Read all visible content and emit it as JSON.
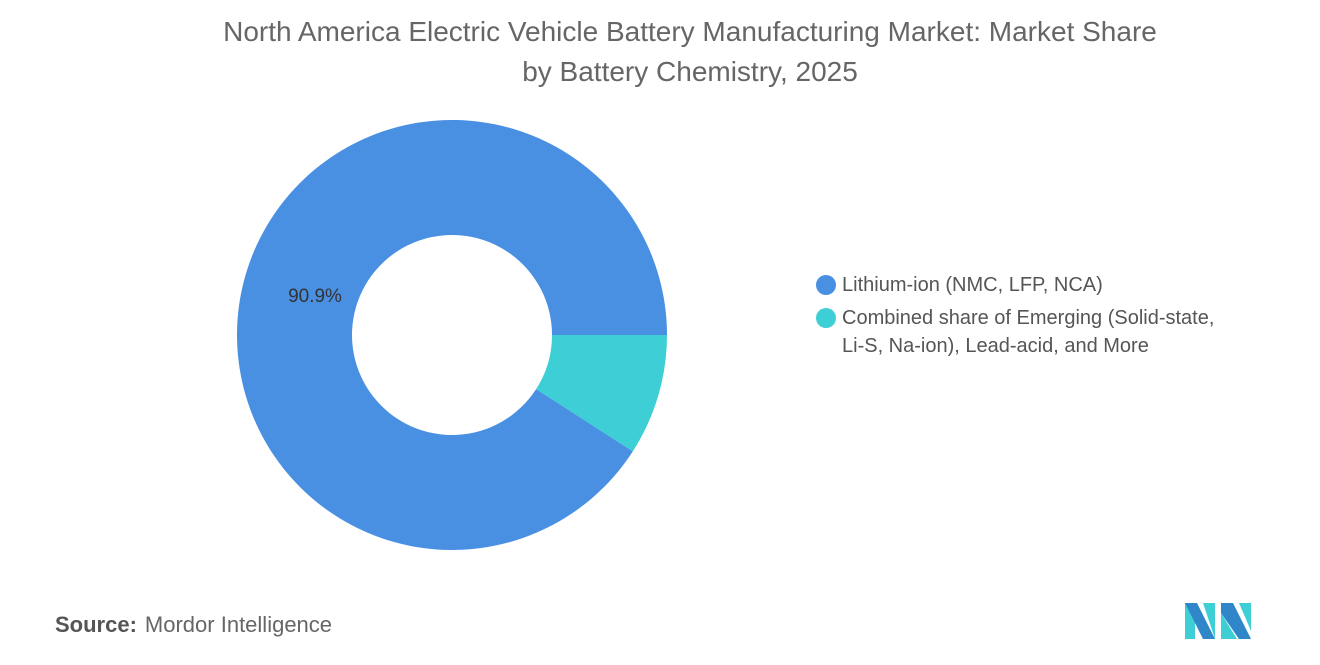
{
  "chart_data": {
    "type": "pie",
    "variant": "donut",
    "title": "North America Electric Vehicle Battery Manufacturing Market: Market Share by Battery Chemistry, 2025",
    "title_lines": [
      "North America Electric Vehicle Battery Manufacturing Market: Market Share",
      "by Battery Chemistry, 2025"
    ],
    "categories": [
      "Lithium-ion (NMC, LFP, NCA)",
      "Combined share of Emerging (Solid-state, Li-S, Na-ion), Lead-acid, and More"
    ],
    "values": [
      90.9,
      9.1
    ],
    "colors": [
      "#4a90e2",
      "#3ecfd6"
    ],
    "data_labels": [
      "90.9%",
      ""
    ],
    "legend_position": "right"
  },
  "legend": {
    "items": [
      {
        "label_lines": [
          "Lithium-ion (NMC, LFP, NCA)"
        ]
      },
      {
        "label_lines": [
          "Combined share of Emerging (Solid-state,",
          "Li-S, Na-ion), Lead-acid, and More"
        ]
      }
    ]
  },
  "source": {
    "label": "Source:",
    "value": "Mordor Intelligence"
  },
  "logo": {
    "name": "mordor-intelligence-logo",
    "colors": [
      "#2f86c8",
      "#3ecfd6"
    ]
  }
}
